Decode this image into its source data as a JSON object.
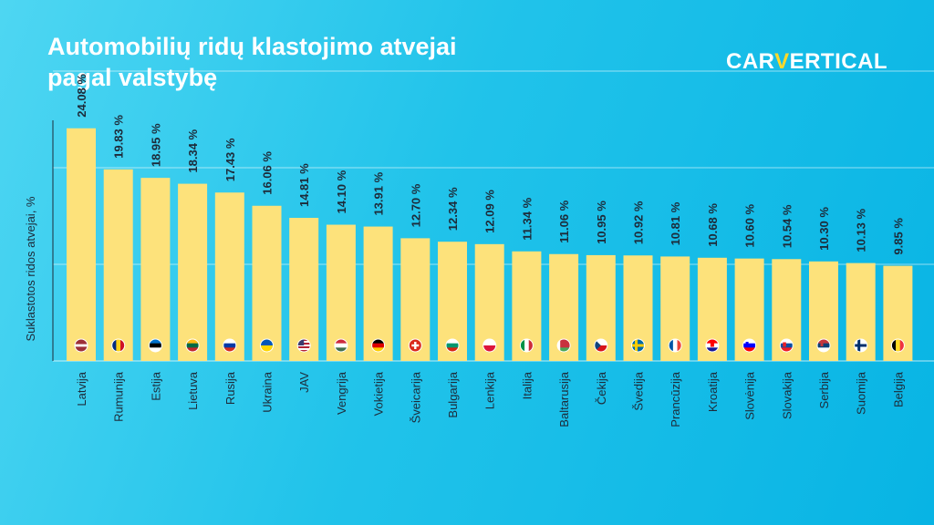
{
  "header": {
    "title_line1": "Automobilių ridų klastojimo atvejai",
    "title_line2": "pagal valstybę"
  },
  "logo": {
    "part1": "CAR",
    "part2": "V",
    "part3": "ERTICAL"
  },
  "colors": {
    "bar": "#fde27b",
    "text": "#1d2b3a",
    "grid": "#ffffff"
  },
  "chart_data": {
    "type": "bar",
    "ylabel": "Suklastotos ridos atvejai, %",
    "xlabel": "",
    "ylim": [
      0,
      35
    ],
    "grid": true,
    "categories": [
      "Latvija",
      "Rumunija",
      "Estija",
      "Lietuva",
      "Rusija",
      "Ukraina",
      "JAV",
      "Vengrija",
      "Vokietija",
      "Šveicarija",
      "Bulgarija",
      "Lenkija",
      "Italija",
      "Baltarusija",
      "Čekija",
      "Švedija",
      "Prancūzija",
      "Kroatija",
      "Slovėnija",
      "Slovakija",
      "Serbija",
      "Suomija",
      "Belgija"
    ],
    "values": [
      24.08,
      19.83,
      18.95,
      18.34,
      17.43,
      16.06,
      14.81,
      14.1,
      13.91,
      12.7,
      12.34,
      12.09,
      11.34,
      11.06,
      10.95,
      10.92,
      10.81,
      10.68,
      10.6,
      10.54,
      10.3,
      10.13,
      9.85
    ],
    "value_labels": [
      "24.08 %",
      "19.83 %",
      "18.95 %",
      "18.34 %",
      "17.43 %",
      "16.06 %",
      "14.81 %",
      "14.10 %",
      "13.91 %",
      "12.70 %",
      "12.34 %",
      "12.09 %",
      "11.34 %",
      "11.06 %",
      "10.95 %",
      "10.92 %",
      "10.81 %",
      "10.68 %",
      "10.60 %",
      "10.54 %",
      "10.30 %",
      "10.13 %",
      "9.85 %"
    ],
    "flags": [
      "latvia-flag-icon",
      "romania-flag-icon",
      "estonia-flag-icon",
      "lithuania-flag-icon",
      "russia-flag-icon",
      "ukraine-flag-icon",
      "usa-flag-icon",
      "hungary-flag-icon",
      "germany-flag-icon",
      "switzerland-flag-icon",
      "bulgaria-flag-icon",
      "poland-flag-icon",
      "italy-flag-icon",
      "belarus-flag-icon",
      "czechia-flag-icon",
      "sweden-flag-icon",
      "france-flag-icon",
      "croatia-flag-icon",
      "slovenia-flag-icon",
      "slovakia-flag-icon",
      "serbia-flag-icon",
      "finland-flag-icon",
      "belgium-flag-icon"
    ]
  }
}
